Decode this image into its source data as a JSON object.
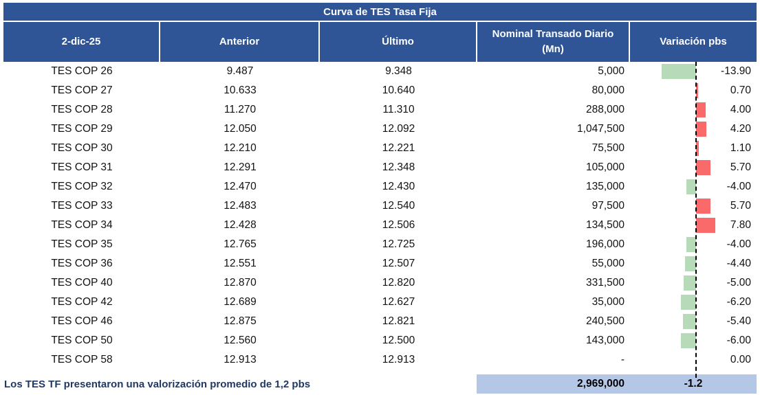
{
  "title": "Curva de TES Tasa Fija",
  "columns": {
    "date": "2-dic-25",
    "anterior": "Anterior",
    "ultimo": "Último",
    "nominal": "Nominal Transado Diario (Mn)",
    "variacion": "Variación pbs"
  },
  "rows": [
    {
      "name": "TES COP 26",
      "anterior": "9.487",
      "ultimo": "9.348",
      "nominal": "5,000",
      "variacion": -13.9,
      "variacion_label": "-13.90"
    },
    {
      "name": "TES COP 27",
      "anterior": "10.633",
      "ultimo": "10.640",
      "nominal": "80,000",
      "variacion": 0.7,
      "variacion_label": "0.70"
    },
    {
      "name": "TES COP 28",
      "anterior": "11.270",
      "ultimo": "11.310",
      "nominal": "288,000",
      "variacion": 4.0,
      "variacion_label": "4.00"
    },
    {
      "name": "TES COP 29",
      "anterior": "12.050",
      "ultimo": "12.092",
      "nominal": "1,047,500",
      "variacion": 4.2,
      "variacion_label": "4.20"
    },
    {
      "name": "TES COP 30",
      "anterior": "12.210",
      "ultimo": "12.221",
      "nominal": "75,500",
      "variacion": 1.1,
      "variacion_label": "1.10"
    },
    {
      "name": "TES COP 31",
      "anterior": "12.291",
      "ultimo": "12.348",
      "nominal": "105,000",
      "variacion": 5.7,
      "variacion_label": "5.70"
    },
    {
      "name": "TES COP 32",
      "anterior": "12.470",
      "ultimo": "12.430",
      "nominal": "135,000",
      "variacion": -4.0,
      "variacion_label": "-4.00"
    },
    {
      "name": "TES COP 33",
      "anterior": "12.483",
      "ultimo": "12.540",
      "nominal": "97,500",
      "variacion": 5.7,
      "variacion_label": "5.70"
    },
    {
      "name": "TES COP 34",
      "anterior": "12.428",
      "ultimo": "12.506",
      "nominal": "134,500",
      "variacion": 7.8,
      "variacion_label": "7.80"
    },
    {
      "name": "TES COP 35",
      "anterior": "12.765",
      "ultimo": "12.725",
      "nominal": "196,000",
      "variacion": -4.0,
      "variacion_label": "-4.00"
    },
    {
      "name": "TES COP 36",
      "anterior": "12.551",
      "ultimo": "12.507",
      "nominal": "55,000",
      "variacion": -4.4,
      "variacion_label": "-4.40"
    },
    {
      "name": "TES COP 40",
      "anterior": "12.870",
      "ultimo": "12.820",
      "nominal": "331,500",
      "variacion": -5.0,
      "variacion_label": "-5.00"
    },
    {
      "name": "TES COP 42",
      "anterior": "12.689",
      "ultimo": "12.627",
      "nominal": "35,000",
      "variacion": -6.2,
      "variacion_label": "-6.20"
    },
    {
      "name": "TES COP 46",
      "anterior": "12.875",
      "ultimo": "12.821",
      "nominal": "240,500",
      "variacion": -5.4,
      "variacion_label": "-5.40"
    },
    {
      "name": "TES COP 50",
      "anterior": "12.560",
      "ultimo": "12.500",
      "nominal": "143,000",
      "variacion": -6.0,
      "variacion_label": "-6.00"
    },
    {
      "name": "TES COP 58",
      "anterior": "12.913",
      "ultimo": "12.913",
      "nominal": "-",
      "variacion": 0.0,
      "variacion_label": "0.00"
    }
  ],
  "footer": {
    "note": "Los TES TF presentaron una valorización promedio de 1,2 pbs",
    "total_nominal": "2,969,000",
    "avg_variacion": "-1.2"
  },
  "colors": {
    "header_bg": "#2F5597",
    "footer_band": "#B4C7E7",
    "bar_positive": "#FB6A6A",
    "bar_negative": "#B7DBB9",
    "note_text": "#1F3864"
  },
  "chart_data": {
    "type": "table",
    "title": "Curva de TES Tasa Fija",
    "columns": [
      "2-dic-25",
      "Anterior",
      "Último",
      "Nominal Transado Diario (Mn)",
      "Variación pbs"
    ],
    "categories": [
      "TES COP 26",
      "TES COP 27",
      "TES COP 28",
      "TES COP 29",
      "TES COP 30",
      "TES COP 31",
      "TES COP 32",
      "TES COP 33",
      "TES COP 34",
      "TES COP 35",
      "TES COP 36",
      "TES COP 40",
      "TES COP 42",
      "TES COP 46",
      "TES COP 50",
      "TES COP 58"
    ],
    "series": [
      {
        "name": "Anterior",
        "values": [
          9.487,
          10.633,
          11.27,
          12.05,
          12.21,
          12.291,
          12.47,
          12.483,
          12.428,
          12.765,
          12.551,
          12.87,
          12.689,
          12.875,
          12.56,
          12.913
        ]
      },
      {
        "name": "Último",
        "values": [
          9.348,
          10.64,
          11.31,
          12.092,
          12.221,
          12.348,
          12.43,
          12.54,
          12.506,
          12.725,
          12.507,
          12.82,
          12.627,
          12.821,
          12.5,
          12.913
        ]
      },
      {
        "name": "Nominal Transado Diario (Mn)",
        "values": [
          5000,
          80000,
          288000,
          1047500,
          75500,
          105000,
          135000,
          97500,
          134500,
          196000,
          55000,
          331500,
          35000,
          240500,
          143000,
          null
        ]
      },
      {
        "name": "Variación pbs",
        "type": "bar",
        "values": [
          -13.9,
          0.7,
          4.0,
          4.2,
          1.1,
          5.7,
          -4.0,
          5.7,
          7.8,
          -4.0,
          -4.4,
          -5.0,
          -6.2,
          -5.4,
          -6.0,
          0.0
        ]
      }
    ],
    "bar_axis": {
      "zero_line_style": "dashed",
      "positive_color": "#FB6A6A",
      "negative_color": "#B7DBB9",
      "approx_range": [
        -14,
        8
      ]
    },
    "totals": {
      "nominal_total": 2969000,
      "variacion_promedio": -1.2
    }
  }
}
